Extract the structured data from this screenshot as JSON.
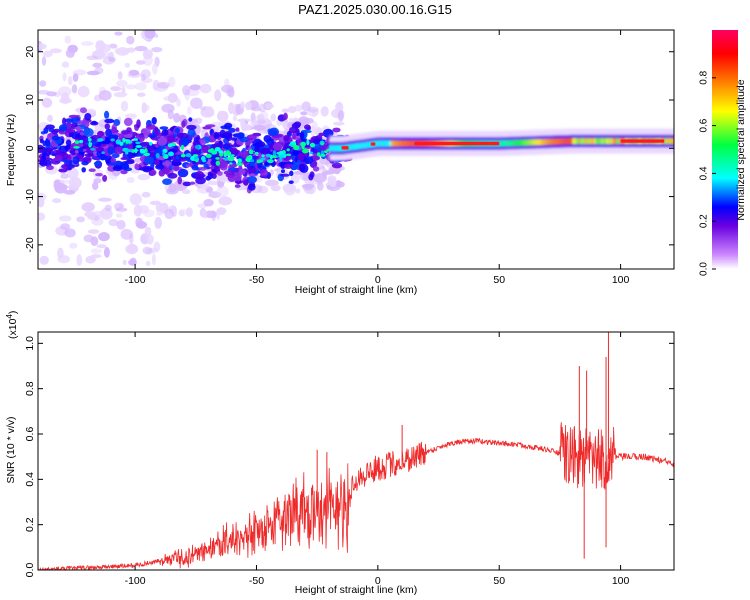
{
  "title": "PAZ1.2025.030.00.16.G15",
  "chart_data": [
    {
      "type": "heatmap",
      "xlabel": "Height of straight line (km)",
      "ylabel": "Frequency (Hz)",
      "xlim": [
        -140,
        122
      ],
      "ylim": [
        -25,
        24.5
      ],
      "x_ticks": [
        -100,
        -50,
        0,
        50,
        100
      ],
      "y_ticks": [
        -20,
        -10,
        0,
        10,
        20
      ],
      "colorbar": {
        "label": "Normalized spectral amplitude",
        "range": [
          0,
          1
        ],
        "ticks": [
          0.0,
          0.2,
          0.4,
          0.6,
          0.8
        ],
        "colors": [
          "#ffffff",
          "#cc88ff",
          "#6a00e0",
          "#0000ff",
          "#00ffff",
          "#00ff40",
          "#ffff00",
          "#ff8000",
          "#ff0000",
          "#ff0060"
        ]
      },
      "band_center": [
        {
          "x": -140,
          "f": 0.5
        },
        {
          "x": -100,
          "f": 0.5
        },
        {
          "x": -70,
          "f": -1.5
        },
        {
          "x": -50,
          "f": -2.0
        },
        {
          "x": -30,
          "f": 0.0
        },
        {
          "x": -15,
          "f": 0.0
        },
        {
          "x": 0,
          "f": 1.0
        },
        {
          "x": 50,
          "f": 1.0
        },
        {
          "x": 80,
          "f": 1.5
        },
        {
          "x": 100,
          "f": 1.5
        },
        {
          "x": 122,
          "f": 1.5
        }
      ]
    },
    {
      "type": "line",
      "xlabel": "Height of straight line (km)",
      "ylabel": "SNR (10 * v/v)",
      "ylabel_multiplier": "(x10",
      "ylabel_multiplier_exp": "4",
      "ylabel_multiplier_close": ")",
      "xlim": [
        -140,
        122
      ],
      "ylim": [
        0,
        1.05
      ],
      "x_ticks": [
        -100,
        -50,
        0,
        50,
        100
      ],
      "y_ticks": [
        0.0,
        0.2,
        0.4,
        0.6,
        0.8,
        1.0
      ],
      "line_color": "#ee2a2a",
      "envelope": [
        {
          "x": -140,
          "y": 0.0
        },
        {
          "x": -120,
          "y": 0.01
        },
        {
          "x": -100,
          "y": 0.02
        },
        {
          "x": -90,
          "y": 0.04
        },
        {
          "x": -80,
          "y": 0.06
        },
        {
          "x": -70,
          "y": 0.1
        },
        {
          "x": -60,
          "y": 0.14
        },
        {
          "x": -50,
          "y": 0.18
        },
        {
          "x": -40,
          "y": 0.24
        },
        {
          "x": -30,
          "y": 0.28
        },
        {
          "x": -20,
          "y": 0.3
        },
        {
          "x": -12,
          "y": 0.3
        },
        {
          "x": -10,
          "y": 0.4
        },
        {
          "x": 0,
          "y": 0.45
        },
        {
          "x": 10,
          "y": 0.48
        },
        {
          "x": 20,
          "y": 0.52
        },
        {
          "x": 30,
          "y": 0.56
        },
        {
          "x": 40,
          "y": 0.57
        },
        {
          "x": 50,
          "y": 0.56
        },
        {
          "x": 60,
          "y": 0.55
        },
        {
          "x": 70,
          "y": 0.53
        },
        {
          "x": 80,
          "y": 0.5
        },
        {
          "x": 90,
          "y": 0.48
        },
        {
          "x": 100,
          "y": 0.5
        },
        {
          "x": 110,
          "y": 0.5
        },
        {
          "x": 122,
          "y": 0.47
        }
      ],
      "spikes": [
        {
          "x": -25,
          "y": 0.53
        },
        {
          "x": -21,
          "y": 0.52
        },
        {
          "x": 10,
          "y": 0.64
        },
        {
          "x": 83,
          "y": 0.9
        },
        {
          "x": 85,
          "y": 0.05
        },
        {
          "x": 86,
          "y": 0.88
        },
        {
          "x": 94,
          "y": 0.94
        },
        {
          "x": 95,
          "y": 1.05
        },
        {
          "x": 94,
          "y": 0.1
        }
      ]
    }
  ]
}
